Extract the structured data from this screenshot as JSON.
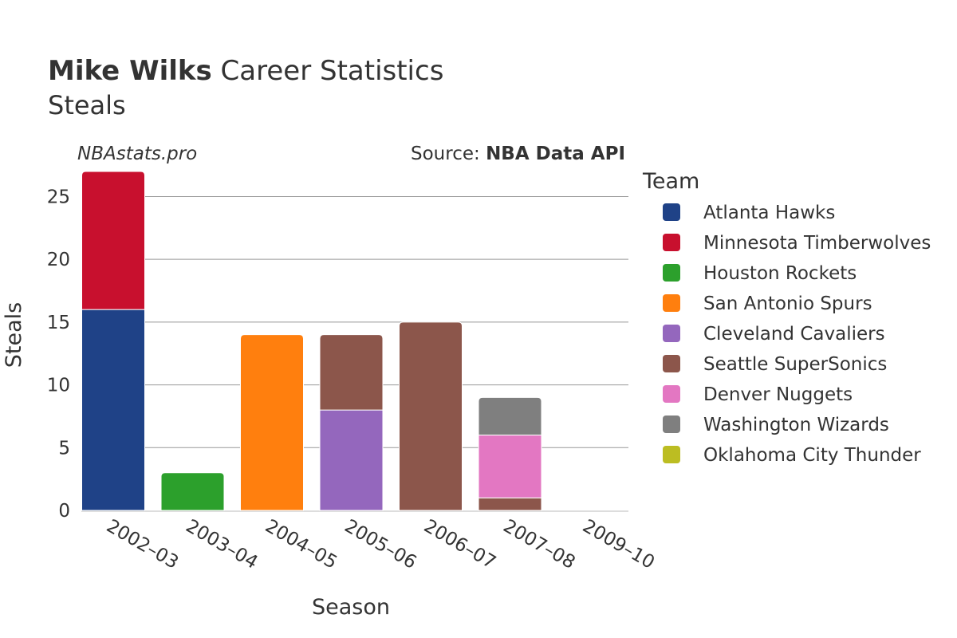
{
  "header": {
    "title_bold": "Mike Wilks",
    "title_rest": " Career Statistics",
    "subtitle": "Steals"
  },
  "branding": {
    "site": "NBAstats.pro",
    "source_prefix": "Source: ",
    "source_name": "NBA Data API"
  },
  "legend": {
    "title": "Team"
  },
  "chart_data": {
    "type": "bar",
    "stacked": true,
    "title": "Mike Wilks Career Statistics",
    "subtitle": "Steals",
    "xlabel": "Season",
    "ylabel": "Steals",
    "ylim": [
      0,
      27
    ],
    "yticks": [
      0,
      5,
      10,
      15,
      20,
      25
    ],
    "grid": true,
    "legend_position": "right",
    "categories": [
      "2002–03",
      "2003–04",
      "2004–05",
      "2005–06",
      "2006–07",
      "2007–08",
      "2009–10"
    ],
    "series": [
      {
        "name": "Atlanta Hawks",
        "color": "#1f4287",
        "values": [
          16,
          0,
          0,
          0,
          0,
          0,
          0
        ]
      },
      {
        "name": "Minnesota Timberwolves",
        "color": "#c8102e",
        "values": [
          11,
          0,
          0,
          0,
          0,
          0,
          0
        ]
      },
      {
        "name": "Houston Rockets",
        "color": "#2ca02c",
        "values": [
          0,
          3,
          0,
          0,
          0,
          0,
          0
        ]
      },
      {
        "name": "San Antonio Spurs",
        "color": "#ff7f0e",
        "values": [
          0,
          0,
          14,
          0,
          0,
          0,
          0
        ]
      },
      {
        "name": "Cleveland Cavaliers",
        "color": "#9467bd",
        "values": [
          0,
          0,
          0,
          8,
          0,
          0,
          0
        ]
      },
      {
        "name": "Seattle SuperSonics",
        "color": "#8c564b",
        "values": [
          0,
          0,
          0,
          6,
          15,
          1,
          0
        ]
      },
      {
        "name": "Denver Nuggets",
        "color": "#e377c2",
        "values": [
          0,
          0,
          0,
          0,
          0,
          5,
          0
        ]
      },
      {
        "name": "Washington Wizards",
        "color": "#7f7f7f",
        "values": [
          0,
          0,
          0,
          0,
          0,
          3,
          0
        ]
      },
      {
        "name": "Oklahoma City Thunder",
        "color": "#bcbd22",
        "values": [
          0,
          0,
          0,
          0,
          0,
          0,
          0
        ]
      }
    ]
  }
}
